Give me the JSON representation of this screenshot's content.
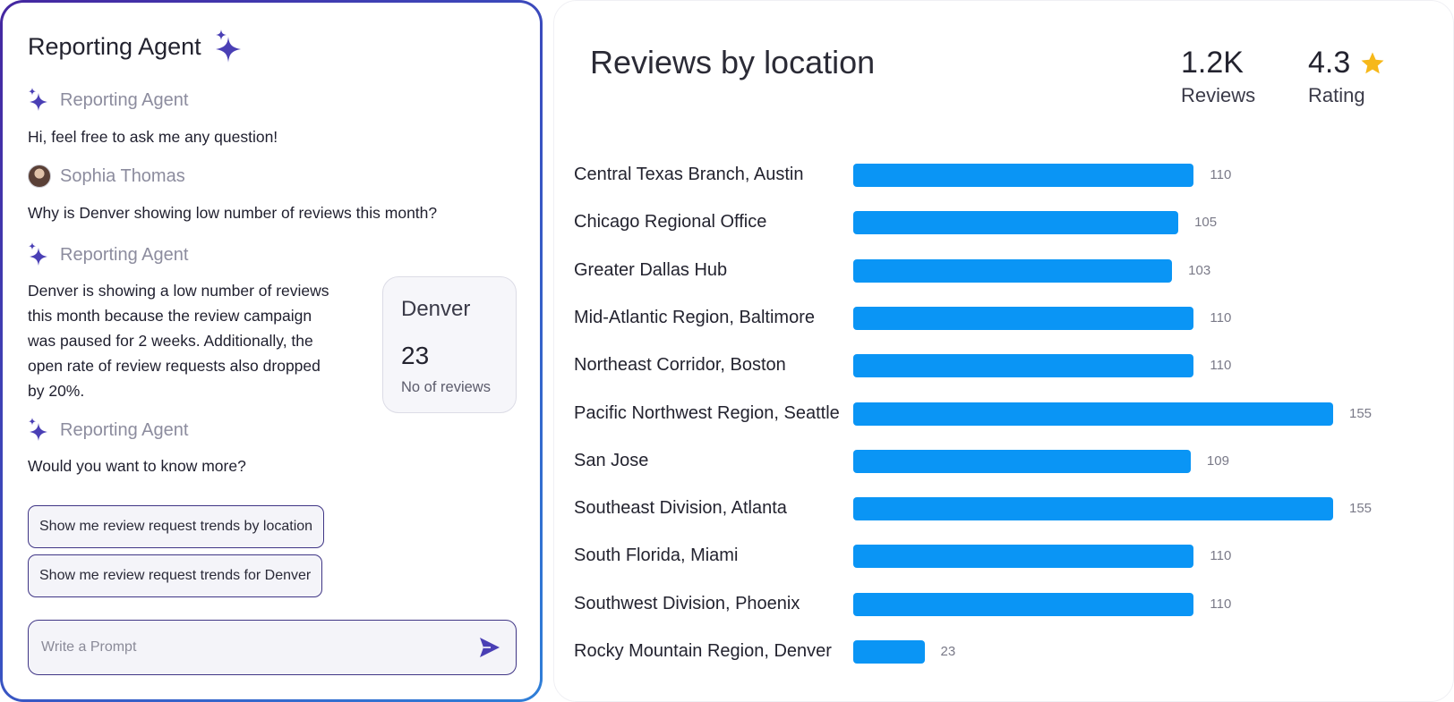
{
  "chat": {
    "title": "Reporting Agent",
    "messages": [
      {
        "author": "Reporting Agent",
        "text": "Hi, feel free to ask me any question!"
      },
      {
        "author": "Sophia Thomas",
        "text": "Why is Denver showing low number of reviews this month?"
      },
      {
        "author": "Reporting Agent",
        "text_lines": [
          "Denver is showing a low number of reviews",
          "this month because the review campaign",
          "was paused for 2 weeks. Additionally, the",
          "open rate of review requests also dropped",
          "by 20%."
        ]
      },
      {
        "author": "Reporting Agent",
        "text": "Would you want to know more?"
      }
    ],
    "denver_card": {
      "title": "Denver",
      "value": "23",
      "label": "No of reviews"
    },
    "suggestions": [
      "Show me review request trends by location",
      "Show me review request trends for Denver"
    ],
    "prompt_placeholder": "Write a Prompt",
    "accent_color": "#4a3fb5"
  },
  "report": {
    "title": "Reviews by location",
    "stats": [
      {
        "value": "1.2K",
        "label": "Reviews"
      },
      {
        "value": "4.3",
        "label": "Rating",
        "icon": "star-icon"
      }
    ]
  },
  "chart_data": {
    "type": "bar",
    "orientation": "horizontal",
    "title": "Reviews by location",
    "bar_color": "#0a95f5",
    "categories": [
      "Central Texas Branch, Austin",
      "Chicago Regional Office",
      "Greater Dallas Hub",
      "Mid-Atlantic Region, Baltimore",
      "Northeast Corridor, Boston",
      "Pacific Northwest Region, Seattle",
      "San Jose",
      "Southeast Division, Atlanta",
      "South Florida, Miami",
      "Southwest Division, Phoenix",
      "Rocky Mountain Region, Denver"
    ],
    "values": [
      110,
      105,
      103,
      110,
      110,
      155,
      109,
      155,
      110,
      110,
      23
    ],
    "value_labels": [
      "110",
      "105",
      "103",
      "110",
      "110",
      "155",
      "109",
      "155",
      "110",
      "110",
      "23"
    ],
    "xlim": [
      0,
      155
    ]
  }
}
